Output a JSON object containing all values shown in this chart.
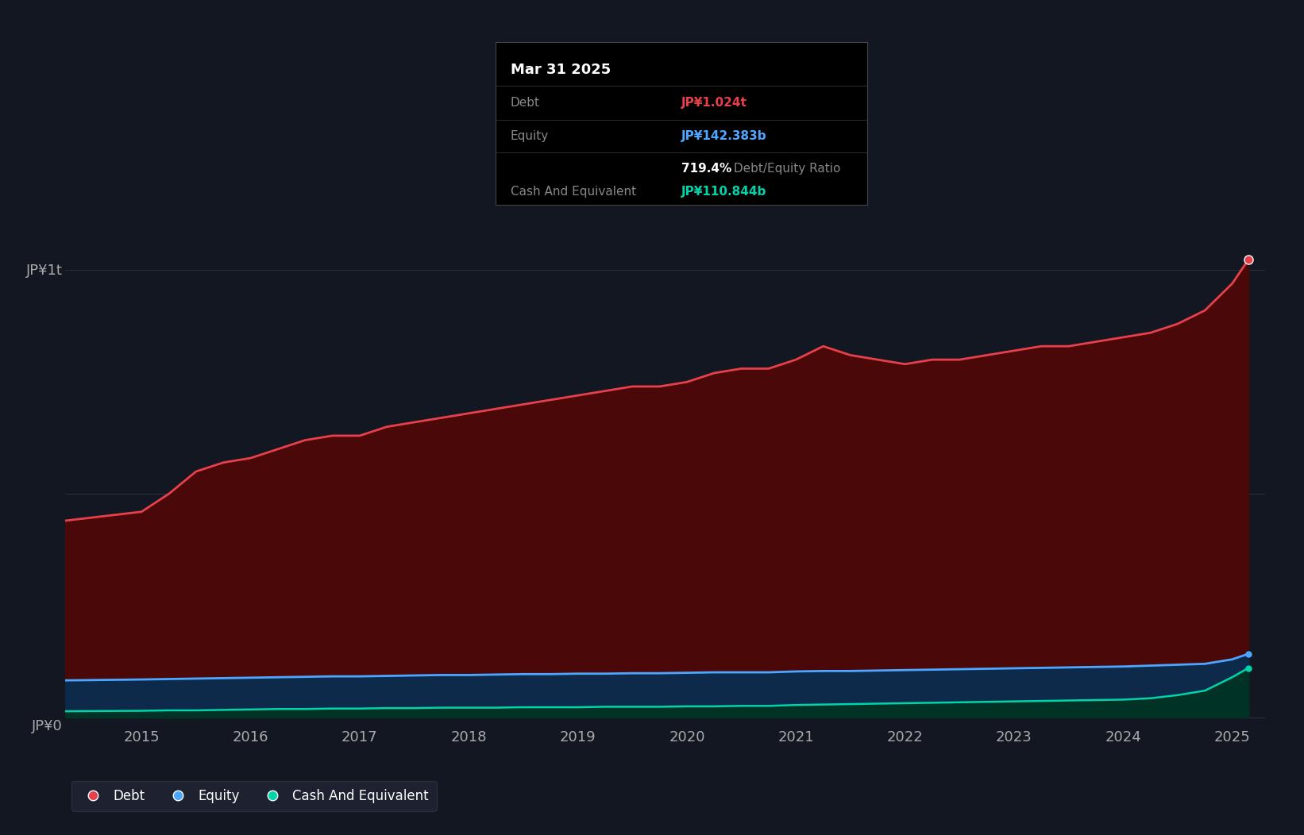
{
  "background_color": "#131722",
  "plot_bg_color": "#131722",
  "grid_color": "#2a2e39",
  "ylabel_top": "JP¥1t",
  "ylabel_bottom": "JP¥0",
  "debt_color": "#e8404a",
  "equity_color": "#4da6ff",
  "cash_color": "#00d4aa",
  "debt_fill": "#4a0808",
  "equity_fill": "#0d2a4a",
  "cash_fill": "#003322",
  "tooltip_bg": "#000000",
  "tooltip_title": "Mar 31 2025",
  "tooltip_debt_label": "Debt",
  "tooltip_debt_value": "JP¥1.024t",
  "tooltip_equity_label": "Equity",
  "tooltip_equity_value": "JP¥142.383b",
  "tooltip_ratio": "719.4% Debt/Equity Ratio",
  "tooltip_cash_label": "Cash And Equivalent",
  "tooltip_cash_value": "JP¥110.844b",
  "legend_debt": "Debt",
  "legend_equity": "Equity",
  "legend_cash": "Cash And Equivalent",
  "x_ticks": [
    2015,
    2016,
    2017,
    2018,
    2019,
    2020,
    2021,
    2022,
    2023,
    2024,
    2025
  ],
  "years": [
    2014.3,
    2015.0,
    2015.25,
    2015.5,
    2015.75,
    2016.0,
    2016.25,
    2016.5,
    2016.75,
    2017.0,
    2017.25,
    2017.5,
    2017.75,
    2018.0,
    2018.25,
    2018.5,
    2018.75,
    2019.0,
    2019.25,
    2019.5,
    2019.75,
    2020.0,
    2020.25,
    2020.5,
    2020.75,
    2021.0,
    2021.25,
    2021.5,
    2021.75,
    2022.0,
    2022.25,
    2022.5,
    2022.75,
    2023.0,
    2023.25,
    2023.5,
    2023.75,
    2024.0,
    2024.25,
    2024.5,
    2024.75,
    2025.0,
    2025.15
  ],
  "debt": [
    0.44,
    0.46,
    0.5,
    0.55,
    0.57,
    0.58,
    0.6,
    0.62,
    0.63,
    0.63,
    0.65,
    0.66,
    0.67,
    0.68,
    0.69,
    0.7,
    0.71,
    0.72,
    0.73,
    0.74,
    0.74,
    0.75,
    0.77,
    0.78,
    0.78,
    0.8,
    0.83,
    0.81,
    0.8,
    0.79,
    0.8,
    0.8,
    0.81,
    0.82,
    0.83,
    0.83,
    0.84,
    0.85,
    0.86,
    0.88,
    0.91,
    0.97,
    1.024
  ],
  "equity": [
    0.083,
    0.085,
    0.086,
    0.087,
    0.088,
    0.089,
    0.09,
    0.091,
    0.092,
    0.092,
    0.093,
    0.094,
    0.095,
    0.095,
    0.096,
    0.097,
    0.097,
    0.098,
    0.098,
    0.099,
    0.099,
    0.1,
    0.101,
    0.101,
    0.101,
    0.103,
    0.104,
    0.104,
    0.105,
    0.106,
    0.107,
    0.108,
    0.109,
    0.11,
    0.111,
    0.112,
    0.113,
    0.114,
    0.116,
    0.118,
    0.12,
    0.13,
    0.142383
  ],
  "cash": [
    0.014,
    0.015,
    0.016,
    0.016,
    0.017,
    0.018,
    0.019,
    0.019,
    0.02,
    0.02,
    0.021,
    0.021,
    0.022,
    0.022,
    0.022,
    0.023,
    0.023,
    0.023,
    0.024,
    0.024,
    0.024,
    0.025,
    0.025,
    0.026,
    0.026,
    0.028,
    0.029,
    0.03,
    0.031,
    0.032,
    0.033,
    0.034,
    0.035,
    0.036,
    0.037,
    0.038,
    0.039,
    0.04,
    0.043,
    0.05,
    0.06,
    0.09,
    0.110844
  ]
}
